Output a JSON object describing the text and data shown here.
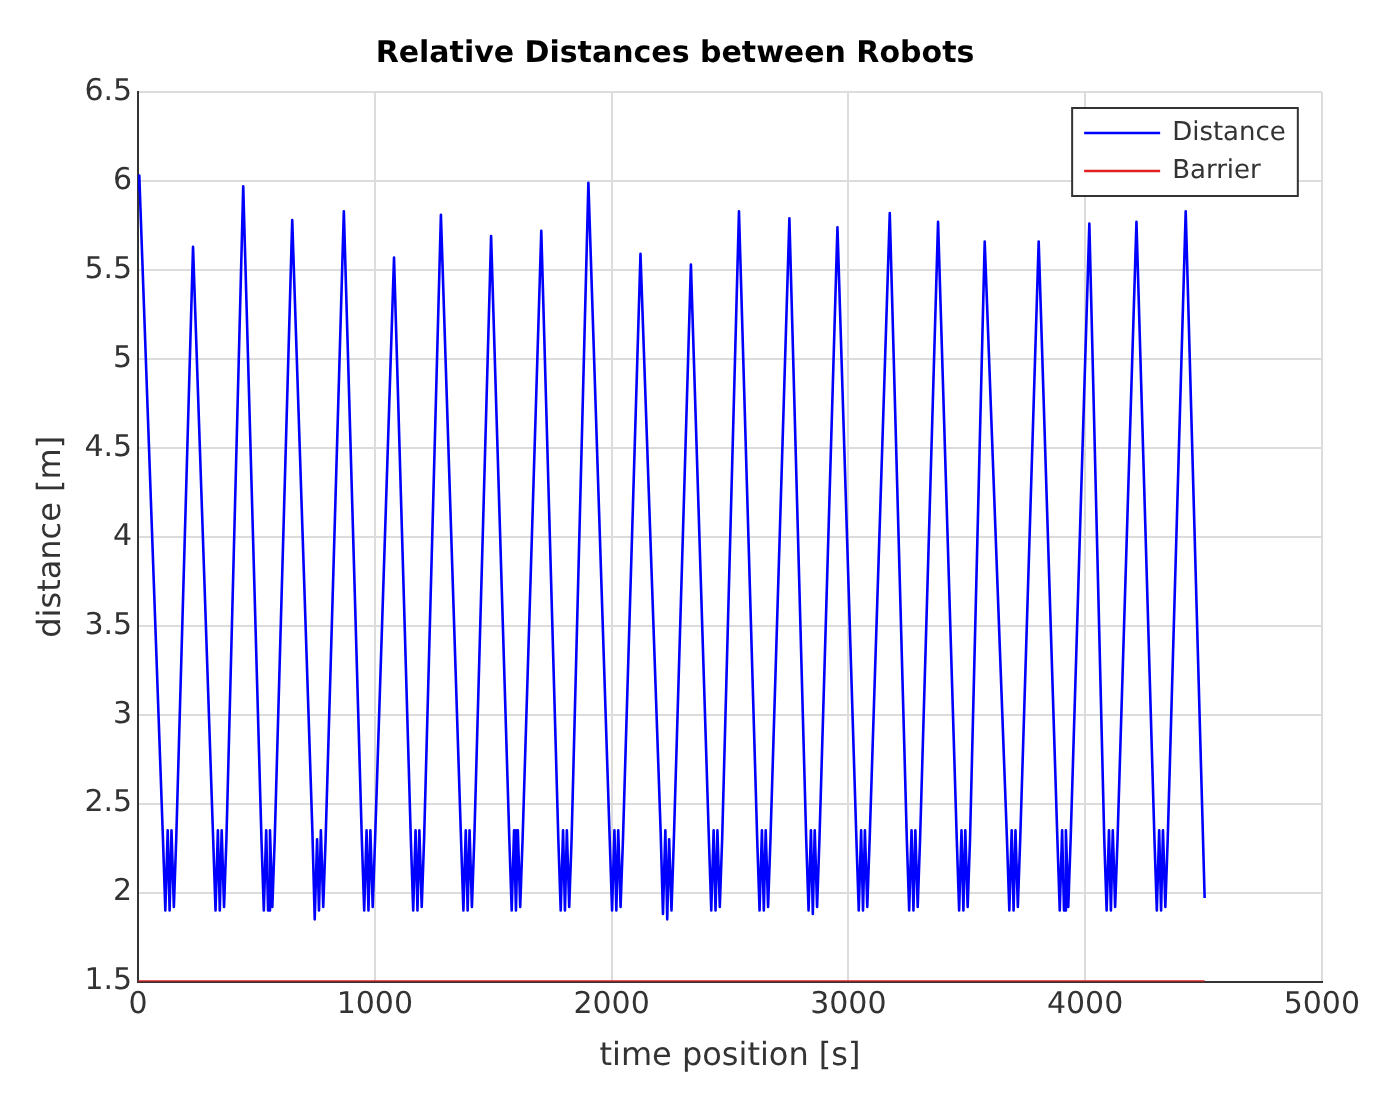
{
  "chart_data": {
    "type": "line",
    "title": "Relative Distances between Robots",
    "xlabel": "time position [s]",
    "ylabel": "distance [m]",
    "xlim": [
      0,
      5000
    ],
    "xticks": [
      0,
      1000,
      2000,
      3000,
      4000,
      5000
    ],
    "ylim": [
      1.5,
      6.5
    ],
    "yticks": [
      1.5,
      2,
      2.5,
      3,
      3.5,
      4,
      4.5,
      5,
      5.5,
      6,
      6.5
    ],
    "grid": true,
    "legend": "top right",
    "series": [
      {
        "name": "Distance",
        "color": "#0000ff",
        "x": [
          0,
          5,
          105,
          115,
          125,
          133,
          141,
          151,
          161,
          232,
          317,
          327,
          337,
          345,
          353,
          363,
          373,
          444,
          521,
          531,
          541,
          549,
          557,
          567,
          577,
          651,
          736,
          746,
          756,
          764,
          772,
          782,
          792,
          869,
          945,
          955,
          965,
          973,
          981,
          991,
          1001,
          1081,
          1152,
          1162,
          1172,
          1180,
          1188,
          1198,
          1208,
          1279,
          1364,
          1374,
          1384,
          1392,
          1400,
          1410,
          1420,
          1491,
          1568,
          1578,
          1588,
          1596,
          1604,
          1614,
          1624,
          1703,
          1775,
          1785,
          1795,
          1803,
          1811,
          1821,
          1831,
          1902,
          1992,
          2002,
          2012,
          2020,
          2028,
          2038,
          2048,
          2122,
          2207,
          2217,
          2227,
          2235,
          2243,
          2253,
          2263,
          2335,
          2411,
          2421,
          2431,
          2439,
          2447,
          2457,
          2467,
          2538,
          2615,
          2625,
          2635,
          2643,
          2651,
          2661,
          2671,
          2751,
          2822,
          2832,
          2842,
          2850,
          2858,
          2868,
          2878,
          2954,
          3034,
          3044,
          3054,
          3062,
          3070,
          3080,
          3090,
          3175,
          3247,
          3257,
          3267,
          3275,
          3283,
          3293,
          3303,
          3379,
          3458,
          3468,
          3478,
          3486,
          3494,
          3504,
          3514,
          3576,
          3670,
          3680,
          3690,
          3698,
          3706,
          3716,
          3726,
          3804,
          3883,
          3893,
          3903,
          3911,
          3919,
          3929,
          3939,
          4018,
          4081,
          4091,
          4101,
          4109,
          4117,
          4127,
          4137,
          4217,
          4293,
          4303,
          4313,
          4321,
          4329,
          4339,
          4349,
          4425,
          4505
        ],
        "values": [
          5.95,
          6.03,
          2.3,
          1.9,
          2.35,
          1.9,
          2.35,
          1.92,
          2.3,
          5.63,
          2.3,
          1.9,
          2.35,
          1.9,
          2.35,
          1.92,
          2.3,
          5.97,
          2.3,
          1.9,
          2.35,
          1.9,
          2.35,
          1.92,
          2.3,
          5.78,
          2.35,
          1.85,
          2.3,
          1.9,
          2.35,
          1.92,
          2.3,
          5.83,
          2.3,
          1.9,
          2.35,
          1.9,
          2.35,
          1.92,
          2.3,
          5.57,
          2.3,
          1.9,
          2.35,
          1.9,
          2.35,
          1.92,
          2.3,
          5.81,
          2.3,
          1.9,
          2.35,
          1.9,
          2.35,
          1.92,
          2.3,
          5.69,
          2.3,
          1.9,
          2.35,
          1.9,
          2.35,
          1.92,
          2.3,
          5.72,
          2.3,
          1.9,
          2.35,
          1.9,
          2.35,
          1.92,
          2.3,
          5.99,
          2.3,
          1.9,
          2.35,
          1.9,
          2.35,
          1.92,
          2.3,
          5.59,
          2.35,
          1.88,
          2.35,
          1.85,
          2.3,
          1.9,
          2.3,
          5.53,
          2.3,
          1.9,
          2.35,
          1.9,
          2.35,
          1.92,
          2.3,
          5.83,
          2.3,
          1.9,
          2.35,
          1.9,
          2.35,
          1.92,
          2.3,
          5.79,
          2.3,
          1.9,
          2.35,
          1.88,
          2.35,
          1.92,
          2.3,
          5.74,
          2.3,
          1.9,
          2.35,
          1.9,
          2.35,
          1.92,
          2.3,
          5.82,
          2.3,
          1.9,
          2.35,
          1.9,
          2.35,
          1.92,
          2.3,
          5.77,
          2.3,
          1.9,
          2.35,
          1.9,
          2.35,
          1.92,
          2.3,
          5.66,
          2.3,
          1.9,
          2.35,
          1.9,
          2.35,
          1.92,
          2.3,
          5.66,
          2.3,
          1.9,
          2.35,
          1.9,
          2.35,
          1.92,
          2.3,
          5.76,
          2.3,
          1.9,
          2.35,
          1.9,
          2.35,
          1.92,
          2.3,
          5.77,
          2.3,
          1.9,
          2.35,
          1.9,
          2.35,
          1.92,
          2.3,
          5.83,
          1.97
        ]
      },
      {
        "name": "Barrier",
        "color": "#e02020",
        "x": [
          0,
          4505
        ],
        "values": [
          1.5,
          1.5
        ]
      }
    ]
  }
}
